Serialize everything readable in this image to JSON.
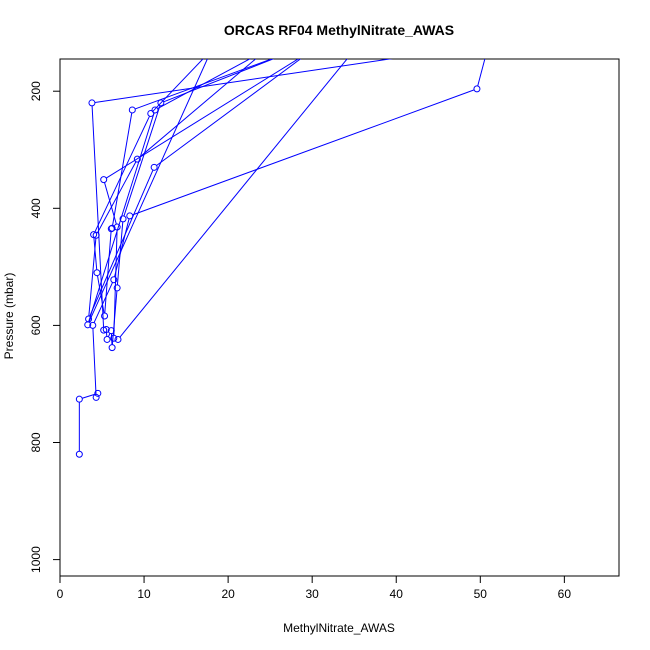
{
  "chart_data": {
    "type": "line",
    "title": "ORCAS RF04 MethylNitrate_AWAS",
    "xlabel": "MethylNitrate_AWAS",
    "ylabel": "Pressure (mbar)",
    "xlim": [
      0,
      66.5
    ],
    "ylim": [
      1028,
      145
    ],
    "y_reversed": true,
    "x_ticks": [
      0,
      10,
      20,
      30,
      40,
      50,
      60
    ],
    "y_ticks": [
      200,
      400,
      600,
      800,
      1000
    ],
    "x_tick_labels": [
      "0",
      "10",
      "20",
      "30",
      "40",
      "50",
      "60"
    ],
    "y_tick_labels": [
      "200",
      "400",
      "600",
      "800",
      "1000"
    ],
    "grid": false,
    "legend": "none",
    "series": [
      {
        "color": "#0000ff",
        "marker": "open-circle",
        "points": [
          [
            2.3,
            820
          ],
          [
            2.3,
            726
          ],
          [
            4.5,
            716
          ],
          [
            4.3,
            723
          ],
          [
            3.9,
            600
          ],
          [
            6.4,
            522
          ],
          [
            8.3,
            413
          ],
          [
            49.6,
            196
          ],
          [
            51.0,
            120
          ],
          [
            3.8,
            220
          ],
          [
            5.2,
            608
          ],
          [
            5.5,
            607
          ],
          [
            5.6,
            624
          ],
          [
            6.1,
            609
          ],
          [
            6.2,
            638
          ],
          [
            6.8,
            536
          ],
          [
            7.5,
            418
          ],
          [
            12.0,
            220
          ],
          [
            28.0,
            130
          ],
          [
            8.6,
            232
          ],
          [
            6.2,
            434
          ],
          [
            6.1,
            435
          ],
          [
            5.3,
            584
          ],
          [
            4.4,
            510
          ],
          [
            4.0,
            445
          ],
          [
            10.8,
            238
          ],
          [
            18.0,
            130
          ],
          [
            3.3,
            599
          ],
          [
            11.3,
            232
          ],
          [
            24.5,
            130
          ],
          [
            9.2,
            316
          ],
          [
            4.3,
            446
          ],
          [
            3.4,
            589
          ],
          [
            11.2,
            330
          ],
          [
            30.0,
            130
          ],
          [
            5.2,
            351
          ],
          [
            6.8,
            432
          ],
          [
            6.4,
            622
          ],
          [
            6.9,
            624
          ],
          [
            35.0,
            130
          ]
        ]
      }
    ]
  }
}
